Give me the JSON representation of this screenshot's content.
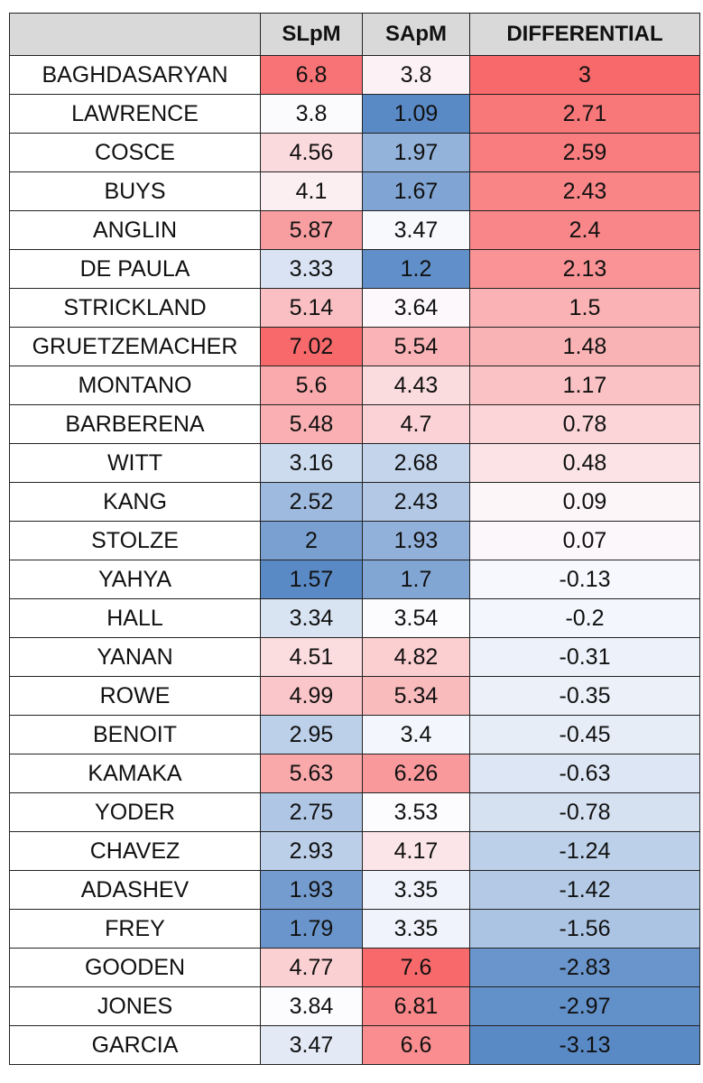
{
  "table": {
    "headers": [
      "",
      "SLpM",
      "SApM",
      "DIFFERENTIAL"
    ],
    "color_scale": {
      "min": "#5A8AC6",
      "mid": "#FCFCFF",
      "max": "#F8696B"
    },
    "rows": [
      {
        "name": "BAGHDASARYAN",
        "slpm": "6.8",
        "sapm": "3.8",
        "diff": "3"
      },
      {
        "name": "LAWRENCE",
        "slpm": "3.8",
        "sapm": "1.09",
        "diff": "2.71"
      },
      {
        "name": "COSCE",
        "slpm": "4.56",
        "sapm": "1.97",
        "diff": "2.59"
      },
      {
        "name": "BUYS",
        "slpm": "4.1",
        "sapm": "1.67",
        "diff": "2.43"
      },
      {
        "name": "ANGLIN",
        "slpm": "5.87",
        "sapm": "3.47",
        "diff": "2.4"
      },
      {
        "name": "DE PAULA",
        "slpm": "3.33",
        "sapm": "1.2",
        "diff": "2.13"
      },
      {
        "name": "STRICKLAND",
        "slpm": "5.14",
        "sapm": "3.64",
        "diff": "1.5"
      },
      {
        "name": "GRUETZEMACHER",
        "slpm": "7.02",
        "sapm": "5.54",
        "diff": "1.48"
      },
      {
        "name": "MONTANO",
        "slpm": "5.6",
        "sapm": "4.43",
        "diff": "1.17"
      },
      {
        "name": "BARBERENA",
        "slpm": "5.48",
        "sapm": "4.7",
        "diff": "0.78"
      },
      {
        "name": "WITT",
        "slpm": "3.16",
        "sapm": "2.68",
        "diff": "0.48"
      },
      {
        "name": "KANG",
        "slpm": "2.52",
        "sapm": "2.43",
        "diff": "0.09"
      },
      {
        "name": "STOLZE",
        "slpm": "2",
        "sapm": "1.93",
        "diff": "0.07"
      },
      {
        "name": "YAHYA",
        "slpm": "1.57",
        "sapm": "1.7",
        "diff": "-0.13"
      },
      {
        "name": "HALL",
        "slpm": "3.34",
        "sapm": "3.54",
        "diff": "-0.2"
      },
      {
        "name": "YANAN",
        "slpm": "4.51",
        "sapm": "4.82",
        "diff": "-0.31"
      },
      {
        "name": "ROWE",
        "slpm": "4.99",
        "sapm": "5.34",
        "diff": "-0.35"
      },
      {
        "name": "BENOIT",
        "slpm": "2.95",
        "sapm": "3.4",
        "diff": "-0.45"
      },
      {
        "name": "KAMAKA",
        "slpm": "5.63",
        "sapm": "6.26",
        "diff": "-0.63"
      },
      {
        "name": "YODER",
        "slpm": "2.75",
        "sapm": "3.53",
        "diff": "-0.78"
      },
      {
        "name": "CHAVEZ",
        "slpm": "2.93",
        "sapm": "4.17",
        "diff": "-1.24"
      },
      {
        "name": "ADASHEV",
        "slpm": "1.93",
        "sapm": "3.35",
        "diff": "-1.42"
      },
      {
        "name": "FREY",
        "slpm": "1.79",
        "sapm": "3.35",
        "diff": "-1.56"
      },
      {
        "name": "GOODEN",
        "slpm": "4.77",
        "sapm": "7.6",
        "diff": "-2.83"
      },
      {
        "name": "JONES",
        "slpm": "3.84",
        "sapm": "6.81",
        "diff": "-2.97"
      },
      {
        "name": "GARCIA",
        "slpm": "3.47",
        "sapm": "6.6",
        "diff": "-3.13"
      }
    ]
  }
}
